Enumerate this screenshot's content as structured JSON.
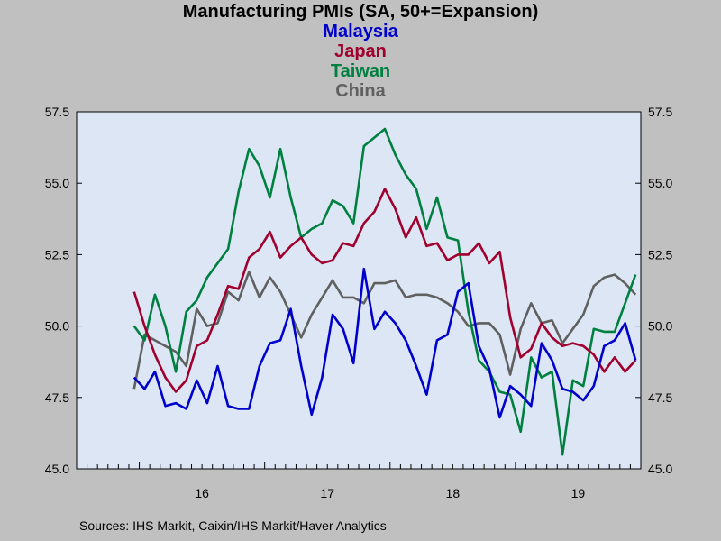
{
  "chart_data": {
    "type": "line",
    "title": "Manufacturing PMIs (SA, 50+=Expansion)",
    "ylim": [
      45.0,
      57.5
    ],
    "yticks": [
      "45.0",
      "47.5",
      "50.0",
      "52.5",
      "55.0",
      "57.5"
    ],
    "xticks": [
      "16",
      "17",
      "18",
      "19"
    ],
    "x_start": "2015-07",
    "x_end": "2019-12",
    "legend_position": "top-center",
    "grid": false,
    "source": "Sources:  IHS Markit, Caixin/IHS Markit/Haver Analytics",
    "series": [
      {
        "name": "Malaysia",
        "color": "#0000cc",
        "values": [
          48.2,
          47.8,
          48.4,
          47.2,
          47.3,
          47.1,
          48.1,
          47.3,
          48.6,
          47.2,
          47.1,
          47.1,
          48.6,
          49.4,
          49.5,
          50.6,
          48.6,
          46.9,
          48.2,
          50.4,
          49.9,
          48.7,
          52.0,
          49.9,
          50.5,
          50.1,
          49.5,
          48.6,
          47.6,
          49.5,
          49.7,
          51.2,
          51.5,
          49.3,
          48.5,
          46.8,
          47.9,
          47.6,
          47.2,
          49.4,
          48.8,
          47.8,
          47.7,
          47.4,
          47.9,
          49.3,
          49.5,
          50.1,
          48.8
        ]
      },
      {
        "name": "Japan",
        "color": "#a0002e",
        "values": [
          51.2,
          50.0,
          49.0,
          48.2,
          47.7,
          48.1,
          49.3,
          49.5,
          50.4,
          51.4,
          51.3,
          52.4,
          52.7,
          53.3,
          52.4,
          52.8,
          53.1,
          52.5,
          52.2,
          52.3,
          52.9,
          52.8,
          53.6,
          54.0,
          54.8,
          54.1,
          53.1,
          53.8,
          52.8,
          52.9,
          52.3,
          52.5,
          52.5,
          52.9,
          52.2,
          52.6,
          50.3,
          48.9,
          49.2,
          50.1,
          49.6,
          49.3,
          49.4,
          49.3,
          49.0,
          48.4,
          48.9,
          48.4,
          48.8
        ]
      },
      {
        "name": "Taiwan",
        "color": "#008040",
        "values": [
          50.0,
          49.5,
          51.1,
          50.0,
          48.4,
          50.5,
          50.9,
          51.7,
          52.2,
          52.7,
          54.7,
          56.2,
          55.6,
          54.5,
          56.2,
          54.5,
          53.1,
          53.4,
          53.6,
          54.4,
          54.2,
          53.6,
          56.3,
          56.6,
          56.9,
          56.0,
          55.3,
          54.8,
          53.4,
          54.5,
          53.1,
          53.0,
          50.5,
          48.8,
          48.4,
          47.7,
          47.6,
          46.3,
          48.9,
          48.2,
          48.4,
          45.5,
          48.1,
          47.9,
          49.9,
          49.8,
          49.8,
          50.8,
          51.8
        ]
      },
      {
        "name": "China",
        "color": "#606060",
        "values": [
          47.8,
          49.7,
          49.5,
          49.3,
          49.1,
          48.6,
          50.6,
          50.0,
          50.1,
          51.2,
          50.9,
          51.9,
          51.0,
          51.7,
          51.2,
          50.4,
          49.6,
          50.4,
          51.0,
          51.6,
          51.0,
          51.0,
          50.8,
          51.5,
          51.5,
          51.6,
          51.0,
          51.1,
          51.1,
          51.0,
          50.8,
          50.5,
          50.0,
          50.1,
          50.1,
          49.7,
          48.3,
          49.9,
          50.8,
          50.1,
          50.2,
          49.4,
          49.9,
          50.4,
          51.4,
          51.7,
          51.8,
          51.5,
          51.1
        ]
      }
    ]
  }
}
